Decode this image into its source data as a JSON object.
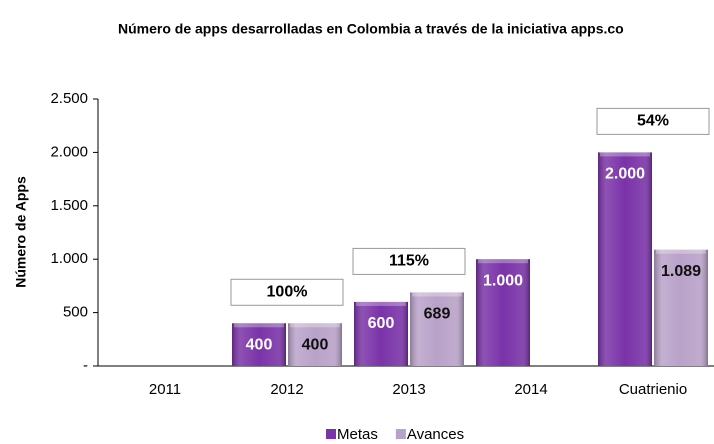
{
  "chart_data": {
    "type": "bar",
    "title": "Número de apps desarrolladas en Colombia a través de la iniciativa apps.co",
    "y_label": "Número de Apps",
    "categories": [
      "2011",
      "2012",
      "2013",
      "2014",
      "Cuatrienio"
    ],
    "series": [
      {
        "name": "Metas",
        "color": "#7a33a8",
        "values": [
          null,
          400,
          600,
          1000,
          2000
        ],
        "value_labels": [
          null,
          "400",
          "600",
          "1.000",
          "2.000"
        ]
      },
      {
        "name": "Avances",
        "color": "#b9a2c9",
        "values": [
          null,
          400,
          689,
          null,
          1089
        ],
        "value_labels": [
          null,
          "400",
          "689",
          null,
          "1.089"
        ]
      }
    ],
    "annotation_labels": [
      null,
      "100%",
      "115%",
      null,
      "54%"
    ],
    "ylim": [
      0,
      2500
    ],
    "yticks": [
      {
        "value": 0,
        "label": "-"
      },
      500,
      {
        "value": 1000,
        "label": "1.000"
      },
      {
        "value": 1500,
        "label": "1.500"
      },
      {
        "value": 2000,
        "label": "2.000"
      },
      {
        "value": 2500,
        "label": "2.500"
      }
    ],
    "legend": "bottom"
  }
}
